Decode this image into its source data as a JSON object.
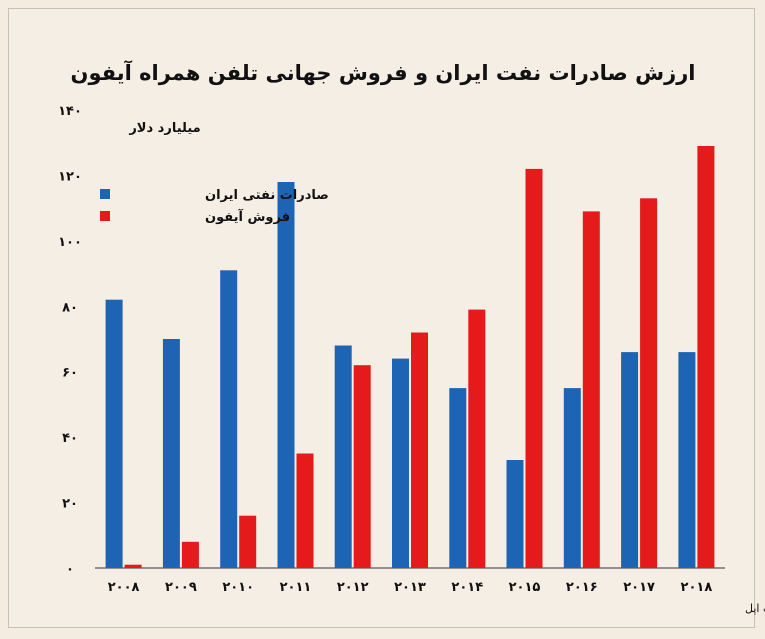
{
  "chart_data": {
    "type": "bar",
    "title": "ارزش صادرات نفت ایران و فروش جهانی تلفن همراه آیفون",
    "ylabel": "میلیارد دلار",
    "xlabel": "",
    "ylim": [
      0,
      140
    ],
    "yticks": [
      "۰",
      "۲۰",
      "۴۰",
      "۶۰",
      "۸۰",
      "۱۰۰",
      "۱۲۰",
      "۱۴۰"
    ],
    "categories": [
      "۲۰۰۸",
      "۲۰۰۹",
      "۲۰۱۰",
      "۲۰۱۱",
      "۲۰۱۲",
      "۲۰۱۳",
      "۲۰۱۴",
      "۲۰۱۵",
      "۲۰۱۶",
      "۲۰۱۷",
      "۲۰۱۸"
    ],
    "series": [
      {
        "name": "صادرات نفتی ایران",
        "color": "#1e64b4",
        "values": [
          82,
          70,
          91,
          118,
          68,
          64,
          55,
          33,
          55,
          66,
          66
        ]
      },
      {
        "name": "فروش آیفون",
        "color": "#e51a1a",
        "values": [
          1,
          8,
          16,
          35,
          62,
          72,
          79,
          122,
          109,
          113,
          129
        ]
      }
    ],
    "legend_position": "top-left",
    "grid": false,
    "source": "تحلیل و استنتاج: احسان سلطانی بر اساس داده های صادرات نفت و شرکت اپل"
  }
}
